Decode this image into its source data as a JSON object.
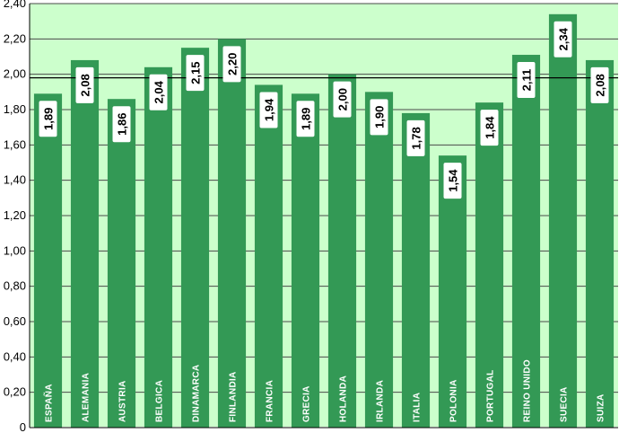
{
  "chart_data": {
    "type": "bar",
    "categories": [
      "ESPAÑA",
      "ALEMANIA",
      "AUSTRIA",
      "BELGICA",
      "DINAMARCA",
      "FINLANDIA",
      "FRANCIA",
      "GRECIA",
      "HOLANDA",
      "IRLANDA",
      "ITALIA",
      "POLONIA",
      "PORTUGAL",
      "REINO UNIDO",
      "SUECIA",
      "SUIZA"
    ],
    "values": [
      1.89,
      2.08,
      1.86,
      2.04,
      2.15,
      2.2,
      1.94,
      1.89,
      2.0,
      1.9,
      1.78,
      1.54,
      1.84,
      2.11,
      2.34,
      2.08
    ],
    "value_labels": [
      "1,89",
      "2,08",
      "1,86",
      "2,04",
      "2,15",
      "2,20",
      "1,94",
      "1,89",
      "2,00",
      "1,90",
      "1,78",
      "1,54",
      "1,84",
      "2,11",
      "2,34",
      "2,08"
    ],
    "ylim": [
      0,
      2.4
    ],
    "y_ticks": [
      0,
      0.2,
      0.4,
      0.6,
      0.8,
      1.0,
      1.2,
      1.4,
      1.6,
      1.8,
      2.0,
      2.2,
      2.4
    ],
    "y_tick_labels": [
      "0",
      "0,20",
      "0,40",
      "0,60",
      "0,80",
      "1,00",
      "1,20",
      "1,40",
      "1,60",
      "1,80",
      "2,00",
      "2,20",
      "2,40"
    ],
    "reference_line": 1.98,
    "grid": true,
    "title": "",
    "xlabel": "",
    "ylabel": "",
    "colors": {
      "background": "#ccffcc",
      "bar": "#339955",
      "grid": "#4a4a4a",
      "label_box": "#ffffff"
    }
  }
}
